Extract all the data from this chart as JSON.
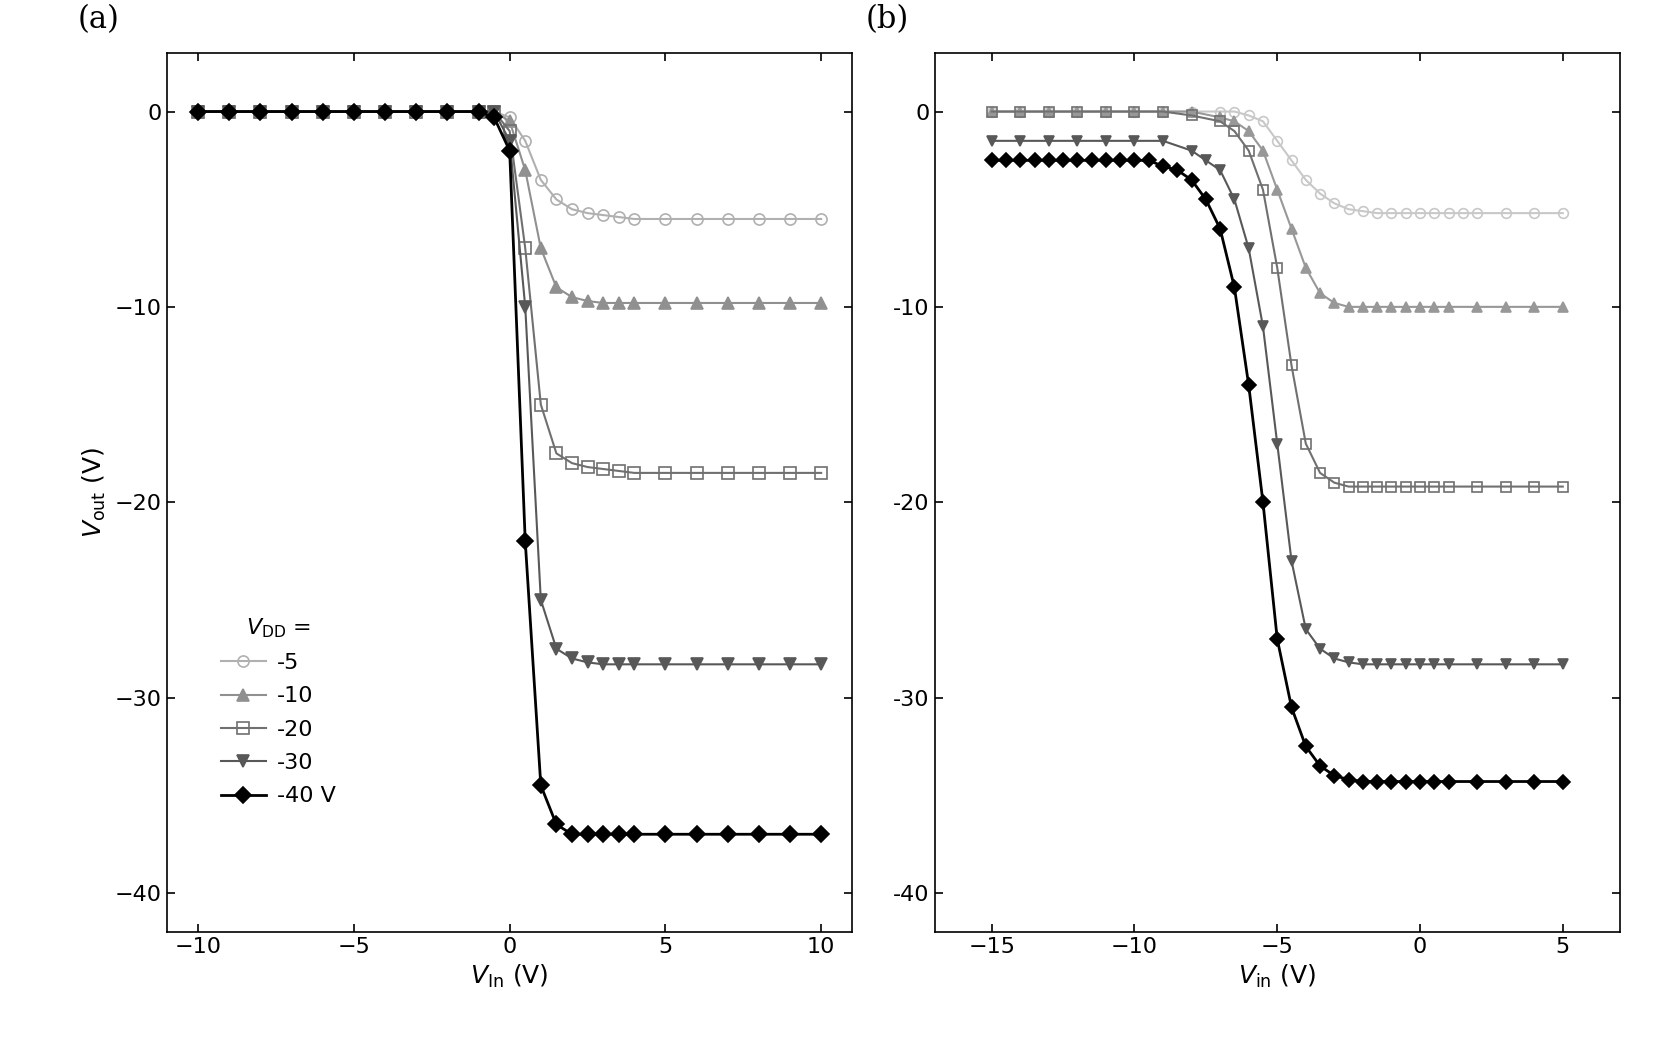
{
  "panel_a": {
    "xlabel": "$V_{\\mathrm{In}}$ (V)",
    "ylabel": "$V_{\\mathrm{out}}$ (V)",
    "xlim": [
      -11,
      11
    ],
    "ylim": [
      -42,
      3
    ],
    "xticks": [
      -10,
      -5,
      0,
      5,
      10
    ],
    "yticks": [
      0,
      -10,
      -20,
      -30,
      -40
    ],
    "label": "(a)",
    "series": [
      {
        "vdd": -5,
        "color": "#b0b0b0",
        "marker": "o",
        "fillstyle": "none",
        "markersize": 8,
        "linewidth": 1.5,
        "x": [
          -10,
          -9,
          -8,
          -7,
          -6,
          -5,
          -4,
          -3,
          -2,
          -1,
          -0.5,
          0,
          0.5,
          1,
          1.5,
          2,
          2.5,
          3,
          3.5,
          4,
          5,
          6,
          7,
          8,
          9,
          10
        ],
        "y": [
          0,
          0,
          0,
          0,
          0,
          0,
          0,
          0,
          0,
          0,
          0,
          -0.3,
          -1.5,
          -3.5,
          -4.5,
          -5.0,
          -5.2,
          -5.3,
          -5.4,
          -5.5,
          -5.5,
          -5.5,
          -5.5,
          -5.5,
          -5.5,
          -5.5
        ]
      },
      {
        "vdd": -10,
        "color": "#909090",
        "marker": "^",
        "fillstyle": "full",
        "markersize": 8,
        "linewidth": 1.5,
        "x": [
          -10,
          -9,
          -8,
          -7,
          -6,
          -5,
          -4,
          -3,
          -2,
          -1,
          -0.5,
          0,
          0.5,
          1,
          1.5,
          2,
          2.5,
          3,
          3.5,
          4,
          5,
          6,
          7,
          8,
          9,
          10
        ],
        "y": [
          0,
          0,
          0,
          0,
          0,
          0,
          0,
          0,
          0,
          0,
          0,
          -0.5,
          -3.0,
          -7.0,
          -9.0,
          -9.5,
          -9.7,
          -9.8,
          -9.8,
          -9.8,
          -9.8,
          -9.8,
          -9.8,
          -9.8,
          -9.8,
          -9.8
        ]
      },
      {
        "vdd": -20,
        "color": "#707070",
        "marker": "s",
        "fillstyle": "none",
        "markersize": 8,
        "linewidth": 1.5,
        "x": [
          -10,
          -9,
          -8,
          -7,
          -6,
          -5,
          -4,
          -3,
          -2,
          -1,
          -0.5,
          0,
          0.5,
          1,
          1.5,
          2,
          2.5,
          3,
          3.5,
          4,
          5,
          6,
          7,
          8,
          9,
          10
        ],
        "y": [
          0,
          0,
          0,
          0,
          0,
          0,
          0,
          0,
          0,
          0,
          0,
          -1.0,
          -7.0,
          -15.0,
          -17.5,
          -18.0,
          -18.2,
          -18.3,
          -18.4,
          -18.5,
          -18.5,
          -18.5,
          -18.5,
          -18.5,
          -18.5,
          -18.5
        ]
      },
      {
        "vdd": -30,
        "color": "#585858",
        "marker": "v",
        "fillstyle": "full",
        "markersize": 8,
        "linewidth": 1.5,
        "x": [
          -10,
          -9,
          -8,
          -7,
          -6,
          -5,
          -4,
          -3,
          -2,
          -1,
          -0.5,
          0,
          0.5,
          1,
          1.5,
          2,
          2.5,
          3,
          3.5,
          4,
          5,
          6,
          7,
          8,
          9,
          10
        ],
        "y": [
          0,
          0,
          0,
          0,
          0,
          0,
          0,
          0,
          0,
          0,
          0,
          -1.5,
          -10.0,
          -25.0,
          -27.5,
          -28.0,
          -28.2,
          -28.3,
          -28.3,
          -28.3,
          -28.3,
          -28.3,
          -28.3,
          -28.3,
          -28.3,
          -28.3
        ]
      },
      {
        "vdd": -40,
        "color": "#000000",
        "marker": "D",
        "fillstyle": "full",
        "markersize": 8,
        "linewidth": 2.0,
        "x": [
          -10,
          -9,
          -8,
          -7,
          -6,
          -5,
          -4,
          -3,
          -2,
          -1,
          -0.5,
          0,
          0.5,
          1,
          1.5,
          2,
          2.5,
          3,
          3.5,
          4,
          5,
          6,
          7,
          8,
          9,
          10
        ],
        "y": [
          0,
          0,
          0,
          0,
          0,
          0,
          0,
          0,
          0,
          0,
          -0.3,
          -2.0,
          -22.0,
          -34.5,
          -36.5,
          -37.0,
          -37.0,
          -37.0,
          -37.0,
          -37.0,
          -37.0,
          -37.0,
          -37.0,
          -37.0,
          -37.0,
          -37.0
        ]
      }
    ]
  },
  "panel_b": {
    "xlabel": "$V_{\\mathrm{in}}$ (V)",
    "ylabel": "$V_{\\mathrm{out}}$ (V)",
    "xlim": [
      -17,
      7
    ],
    "ylim": [
      -42,
      3
    ],
    "xticks": [
      -15,
      -10,
      -5,
      0,
      5
    ],
    "yticks": [
      0,
      -10,
      -20,
      -30,
      -40
    ],
    "label": "(b)",
    "series": [
      {
        "vdd": -5,
        "color": "#c8c8c8",
        "marker": "o",
        "fillstyle": "none",
        "markersize": 7,
        "linewidth": 1.5,
        "x": [
          -15,
          -14,
          -13,
          -12,
          -11,
          -10,
          -9,
          -8,
          -7,
          -6.5,
          -6,
          -5.5,
          -5,
          -4.5,
          -4,
          -3.5,
          -3,
          -2.5,
          -2,
          -1.5,
          -1,
          -0.5,
          0,
          0.5,
          1,
          1.5,
          2,
          3,
          4,
          5
        ],
        "y": [
          0,
          0,
          0,
          0,
          0,
          0,
          0,
          0,
          0,
          0,
          -0.2,
          -0.5,
          -1.5,
          -2.5,
          -3.5,
          -4.2,
          -4.7,
          -5.0,
          -5.1,
          -5.2,
          -5.2,
          -5.2,
          -5.2,
          -5.2,
          -5.2,
          -5.2,
          -5.2,
          -5.2,
          -5.2,
          -5.2
        ]
      },
      {
        "vdd": -10,
        "color": "#989898",
        "marker": "^",
        "fillstyle": "full",
        "markersize": 7,
        "linewidth": 1.5,
        "x": [
          -15,
          -14,
          -13,
          -12,
          -11,
          -10,
          -9,
          -8,
          -7,
          -6.5,
          -6,
          -5.5,
          -5,
          -4.5,
          -4,
          -3.5,
          -3,
          -2.5,
          -2,
          -1.5,
          -1,
          -0.5,
          0,
          0.5,
          1,
          2,
          3,
          4,
          5
        ],
        "y": [
          0,
          0,
          0,
          0,
          0,
          0,
          0,
          0,
          -0.3,
          -0.5,
          -1.0,
          -2.0,
          -4.0,
          -6.0,
          -8.0,
          -9.3,
          -9.8,
          -10.0,
          -10.0,
          -10.0,
          -10.0,
          -10.0,
          -10.0,
          -10.0,
          -10.0,
          -10.0,
          -10.0,
          -10.0,
          -10.0
        ]
      },
      {
        "vdd": -20,
        "color": "#707070",
        "marker": "s",
        "fillstyle": "none",
        "markersize": 7,
        "linewidth": 1.5,
        "x": [
          -15,
          -14,
          -13,
          -12,
          -11,
          -10,
          -9,
          -8,
          -7,
          -6.5,
          -6,
          -5.5,
          -5,
          -4.5,
          -4,
          -3.5,
          -3,
          -2.5,
          -2,
          -1.5,
          -1,
          -0.5,
          0,
          0.5,
          1,
          2,
          3,
          4,
          5
        ],
        "y": [
          0,
          0,
          0,
          0,
          0,
          0,
          0,
          -0.2,
          -0.5,
          -1.0,
          -2.0,
          -4.0,
          -8.0,
          -13.0,
          -17.0,
          -18.5,
          -19.0,
          -19.2,
          -19.2,
          -19.2,
          -19.2,
          -19.2,
          -19.2,
          -19.2,
          -19.2,
          -19.2,
          -19.2,
          -19.2,
          -19.2
        ]
      },
      {
        "vdd": -30,
        "color": "#585858",
        "marker": "v",
        "fillstyle": "full",
        "markersize": 7,
        "linewidth": 1.5,
        "x": [
          -15,
          -14,
          -13,
          -12,
          -11,
          -10,
          -9,
          -8,
          -7.5,
          -7,
          -6.5,
          -6,
          -5.5,
          -5,
          -4.5,
          -4,
          -3.5,
          -3,
          -2.5,
          -2,
          -1.5,
          -1,
          -0.5,
          0,
          0.5,
          1,
          2,
          3,
          4,
          5
        ],
        "y": [
          -1.5,
          -1.5,
          -1.5,
          -1.5,
          -1.5,
          -1.5,
          -1.5,
          -2.0,
          -2.5,
          -3.0,
          -4.5,
          -7.0,
          -11.0,
          -17.0,
          -23.0,
          -26.5,
          -27.5,
          -28.0,
          -28.2,
          -28.3,
          -28.3,
          -28.3,
          -28.3,
          -28.3,
          -28.3,
          -28.3,
          -28.3,
          -28.3,
          -28.3,
          -28.3
        ]
      },
      {
        "vdd": -40,
        "color": "#000000",
        "marker": "D",
        "fillstyle": "full",
        "markersize": 7,
        "linewidth": 2.0,
        "x": [
          -15,
          -14.5,
          -14,
          -13.5,
          -13,
          -12.5,
          -12,
          -11.5,
          -11,
          -10.5,
          -10,
          -9.5,
          -9,
          -8.5,
          -8,
          -7.5,
          -7,
          -6.5,
          -6,
          -5.5,
          -5,
          -4.5,
          -4,
          -3.5,
          -3,
          -2.5,
          -2,
          -1.5,
          -1,
          -0.5,
          0,
          0.5,
          1,
          2,
          3,
          4,
          5
        ],
        "y": [
          -2.5,
          -2.5,
          -2.5,
          -2.5,
          -2.5,
          -2.5,
          -2.5,
          -2.5,
          -2.5,
          -2.5,
          -2.5,
          -2.5,
          -2.8,
          -3.0,
          -3.5,
          -4.5,
          -6.0,
          -9.0,
          -14.0,
          -20.0,
          -27.0,
          -30.5,
          -32.5,
          -33.5,
          -34.0,
          -34.2,
          -34.3,
          -34.3,
          -34.3,
          -34.3,
          -34.3,
          -34.3,
          -34.3,
          -34.3,
          -34.3,
          -34.3,
          -34.3
        ]
      }
    ]
  },
  "legend_labels": [
    "-5",
    "-10",
    "-20",
    "-30",
    "-40 V"
  ],
  "vdd_label": "$V_{\\mathrm{DD}}$ =",
  "figsize": [
    16.7,
    10.59
  ],
  "dpi": 100
}
